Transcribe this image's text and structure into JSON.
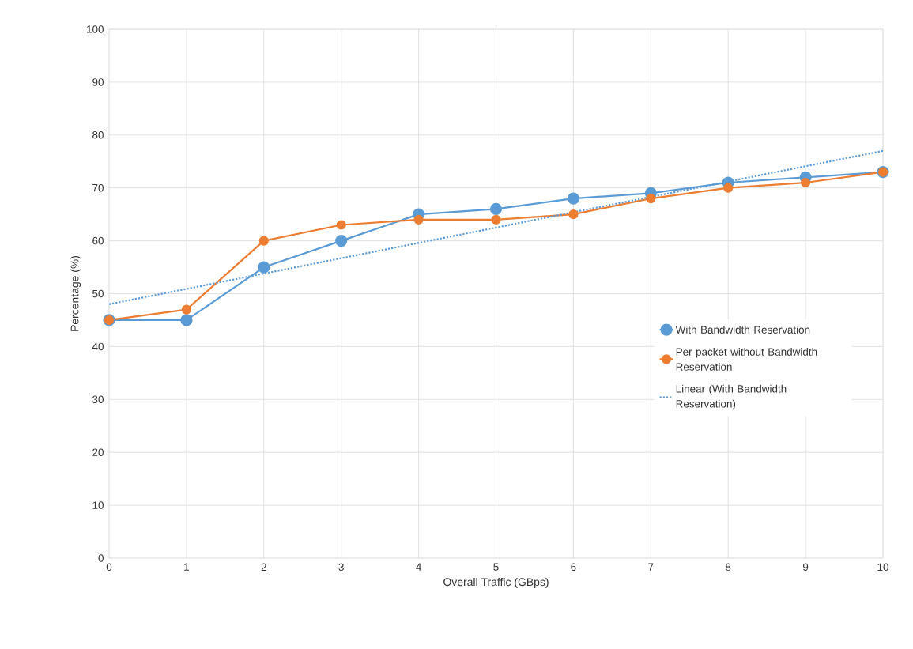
{
  "chart_data": {
    "type": "line",
    "xlabel": "Overall Traffic (GBps)",
    "ylabel": "Percentage (%)",
    "xlim": [
      0,
      10
    ],
    "xticks": [
      0,
      1,
      2,
      3,
      4,
      5,
      6,
      7,
      8,
      9,
      10
    ],
    "ylim": [
      0,
      100
    ],
    "yticks": [
      0,
      10,
      20,
      30,
      40,
      50,
      60,
      70,
      80,
      90,
      100
    ],
    "grid": true,
    "legend": "right",
    "x": [
      0,
      1,
      2,
      3,
      4,
      5,
      6,
      7,
      8,
      9,
      10
    ],
    "series": [
      {
        "name": "With Bandwidth Reservation",
        "color": "#5b9bd5",
        "marker": "circle",
        "line_style": "solid",
        "values": [
          45,
          45,
          55,
          60,
          65,
          66,
          68,
          69,
          71,
          72,
          73
        ]
      },
      {
        "name": "Per packet without Bandwidth Reservation",
        "color": "#ed7d31",
        "marker": "circle",
        "line_style": "solid",
        "values": [
          45,
          47,
          60,
          63,
          64,
          64,
          65,
          68,
          70,
          71,
          73
        ]
      },
      {
        "name": "Linear (With Bandwidth Reservation)",
        "color": "#5b9bd5",
        "marker": "none",
        "line_style": "dotted",
        "x": [
          0,
          10
        ],
        "values": [
          48,
          77
        ]
      }
    ]
  }
}
